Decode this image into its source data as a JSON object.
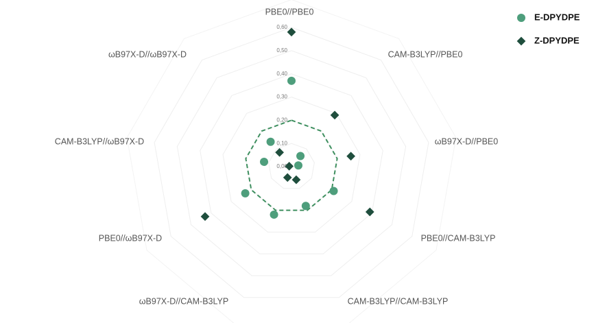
{
  "chart_data": {
    "type": "radar",
    "categories": [
      "PBE0//PBE0",
      "CAM-B3LYP//PBE0",
      "ωB97X-D//PBE0",
      "PBE0//CAM-B3LYP",
      "CAM-B3LYP//CAM-B3LYP",
      "ωB97X-D//CAM-B3LYP",
      "PBE0//ωB97X-D",
      "CAM-B3LYP//ωB97X-D",
      "ωB97X-D//ωB97X-D"
    ],
    "series": [
      {
        "name": "E-DPYDPE",
        "color": "#4e9e7c",
        "marker": "circle",
        "values": [
          0.37,
          0.06,
          0.03,
          0.21,
          0.18,
          0.22,
          0.23,
          0.12,
          0.14
        ]
      },
      {
        "name": "Z-DPYDPE",
        "color": "#1f4e3d",
        "marker": "diamond",
        "values": [
          0.58,
          0.29,
          0.26,
          0.39,
          0.06,
          0.05,
          0.43,
          0.01,
          0.08
        ]
      }
    ],
    "reference_ring": {
      "value": 0.2,
      "color": "#3e8f5f"
    },
    "rlim": [
      0,
      0.6
    ],
    "rticks": [
      {
        "value": 0,
        "label": "0,00"
      },
      {
        "value": 0.1,
        "label": "0,10"
      },
      {
        "value": 0.2,
        "label": "0,20"
      },
      {
        "value": 0.3,
        "label": "0,30"
      },
      {
        "value": 0.4,
        "label": "0,40"
      },
      {
        "value": 0.5,
        "label": "0,50"
      },
      {
        "value": 0.6,
        "label": "0,60"
      }
    ],
    "grid": true,
    "legend": "top-right"
  }
}
